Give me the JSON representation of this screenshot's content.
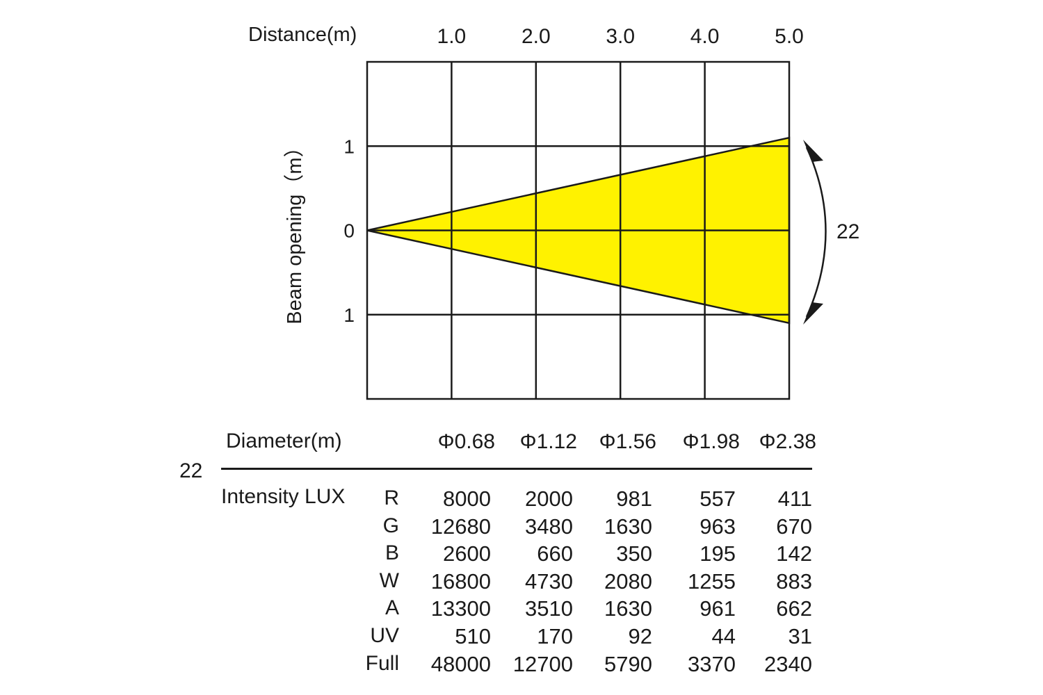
{
  "chart_data": {
    "type": "area",
    "title": "",
    "xlabel": "Distance(m)",
    "ylabel": "Beam opening（m）",
    "x_ticks": [
      "1.0",
      "2.0",
      "3.0",
      "4.0",
      "5.0"
    ],
    "y_ticks": [
      "1",
      "0",
      "1"
    ],
    "xlim": [
      0,
      5
    ],
    "ylim": [
      -2,
      2
    ],
    "grid": true,
    "beam": {
      "angle_label": "22",
      "color": "#FFF200",
      "apex": [
        0,
        0
      ],
      "end_upper": [
        5,
        1.1
      ],
      "end_lower": [
        5,
        -1.1
      ]
    }
  },
  "table": {
    "angle": "22",
    "diameter_label": "Diameter(m)",
    "diameters": [
      "Φ0.68",
      "Φ1.12",
      "Φ1.56",
      "Φ1.98",
      "Φ2.38"
    ],
    "intensity_label": "Intensity LUX",
    "rows": [
      {
        "channel": "R",
        "values": [
          "8000",
          "2000",
          "981",
          "557",
          "411"
        ]
      },
      {
        "channel": "G",
        "values": [
          "12680",
          "3480",
          "1630",
          "963",
          "670"
        ]
      },
      {
        "channel": "B",
        "values": [
          "2600",
          "660",
          "350",
          "195",
          "142"
        ]
      },
      {
        "channel": "W",
        "values": [
          "16800",
          "4730",
          "2080",
          "1255",
          "883"
        ]
      },
      {
        "channel": "A",
        "values": [
          "13300",
          "3510",
          "1630",
          "961",
          "662"
        ]
      },
      {
        "channel": "UV",
        "values": [
          "510",
          "170",
          "92",
          "44",
          "31"
        ]
      },
      {
        "channel": "Full",
        "values": [
          "48000",
          "12700",
          "5790",
          "3370",
          "2340"
        ]
      }
    ]
  }
}
